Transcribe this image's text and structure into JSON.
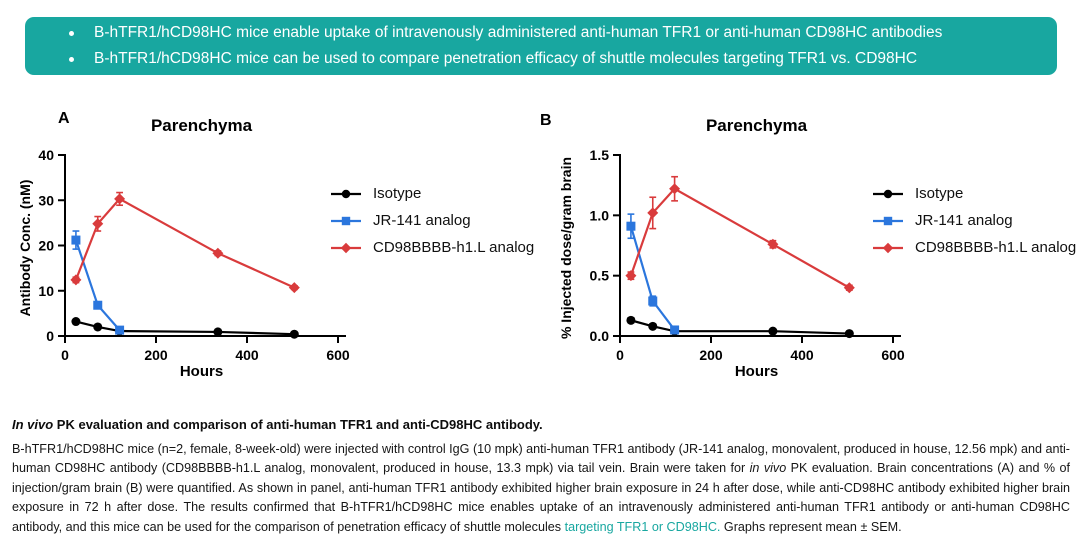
{
  "colors": {
    "teal": "#18a7a0",
    "axis": "#000000"
  },
  "banner": {
    "bg_color": "#18a7a0",
    "bullets": [
      "B-hTFR1/hCD98HC mice enable uptake of intravenously administered anti-human TFR1 or anti-human CD98HC antibodies",
      "B-hTFR1/hCD98HC mice can be used to compare penetration efficacy of shuttle molecules targeting TFR1 vs. CD98HC"
    ]
  },
  "chart_data": [
    {
      "panel_label": "A",
      "type": "line",
      "title": "Parenchyma",
      "xlabel": "Hours",
      "ylabel": "Antibody Conc. (nM)",
      "xlim": [
        0,
        600
      ],
      "ylim": [
        0,
        40
      ],
      "xticks": [
        0,
        200,
        400,
        600
      ],
      "xtick_labels": [
        "0",
        "200",
        "400",
        "600"
      ],
      "yticks": [
        0,
        10,
        20,
        30,
        40
      ],
      "ytick_labels": [
        "0",
        "10",
        "20",
        "30",
        "40"
      ],
      "grid": false,
      "legend_position": "right",
      "series": [
        {
          "name": "Isotype",
          "color": "#000000",
          "marker": "circle",
          "x": [
            24,
            72,
            120,
            336,
            504
          ],
          "y": [
            3.2,
            2.0,
            1.1,
            0.9,
            0.4
          ],
          "err": [
            0.4,
            0.3,
            0.3,
            0.3,
            0.2
          ]
        },
        {
          "name": "JR-141 analog",
          "color": "#2b76dd",
          "marker": "square",
          "x": [
            24,
            72,
            120
          ],
          "y": [
            21.2,
            6.8,
            1.3
          ],
          "err": [
            2.0,
            0.6,
            0.3
          ]
        },
        {
          "name": "CD98BBBB-h1.L analog",
          "color": "#d93b3c",
          "marker": "diamond",
          "x": [
            24,
            72,
            120,
            336,
            504
          ],
          "y": [
            12.4,
            24.8,
            30.3,
            18.3,
            10.7
          ],
          "err": [
            0.6,
            1.6,
            1.4,
            0.5,
            0.4
          ]
        }
      ]
    },
    {
      "panel_label": "B",
      "type": "line",
      "title": "Parenchyma",
      "xlabel": "Hours",
      "ylabel": "%  Injected dose/gram brain",
      "xlim": [
        0,
        600
      ],
      "ylim": [
        0,
        1.5
      ],
      "xticks": [
        0,
        200,
        400,
        600
      ],
      "xtick_labels": [
        "0",
        "200",
        "400",
        "600"
      ],
      "yticks": [
        0,
        0.5,
        1.0,
        1.5
      ],
      "ytick_labels": [
        "0.0",
        "0.5",
        "1.0",
        "1.5"
      ],
      "grid": false,
      "legend_position": "right",
      "series": [
        {
          "name": "Isotype",
          "color": "#000000",
          "marker": "circle",
          "x": [
            24,
            72,
            120,
            336,
            504
          ],
          "y": [
            0.13,
            0.08,
            0.04,
            0.04,
            0.02
          ],
          "err": [
            0.02,
            0.01,
            0.01,
            0.01,
            0.01
          ]
        },
        {
          "name": "JR-141 analog",
          "color": "#2b76dd",
          "marker": "square",
          "x": [
            24,
            72,
            120
          ],
          "y": [
            0.91,
            0.29,
            0.05
          ],
          "err": [
            0.1,
            0.04,
            0.02
          ]
        },
        {
          "name": "CD98BBBB-h1.L analog",
          "color": "#d93b3c",
          "marker": "diamond",
          "x": [
            24,
            72,
            120,
            336,
            504
          ],
          "y": [
            0.5,
            1.02,
            1.22,
            0.76,
            0.4
          ],
          "err": [
            0.03,
            0.13,
            0.1,
            0.03,
            0.02
          ]
        }
      ]
    }
  ],
  "caption": {
    "title_italic": "In vivo",
    "title_rest": " PK evaluation and comparison of anti-human TFR1 and anti-CD98HC antibody.",
    "body_1": "B-hTFR1/hCD98HC mice (n=2, female, 8-week-old) were injected with control IgG (10 mpk) anti-human TFR1 antibody (JR-141 analog, monovalent, produced in house, 12.56 mpk) and anti-human CD98HC antibody (CD98BBBB-h1.L analog, monovalent, produced in house, 13.3 mpk) via tail vein. Brain were taken for ",
    "body_italic": "in vivo",
    "body_2": " PK evaluation. Brain concentrations (A) and % of injection/gram brain (B) were quantified. As shown in panel, anti-human TFR1 antibody exhibited higher brain exposure in 24 h after dose, while anti-CD98HC antibody exhibited higher brain exposure in 72 h after dose. The results confirmed that B-hTFR1/hCD98HC mice enables uptake of an intravenously administered anti-human TFR1 antibody or anti-human CD98HC antibody, and this mice can be used for the comparison of penetration efficacy of shuttle molecules ",
    "body_teal": "targeting TFR1 or CD98HC.",
    "body_3": " Graphs represent mean ± SEM."
  }
}
